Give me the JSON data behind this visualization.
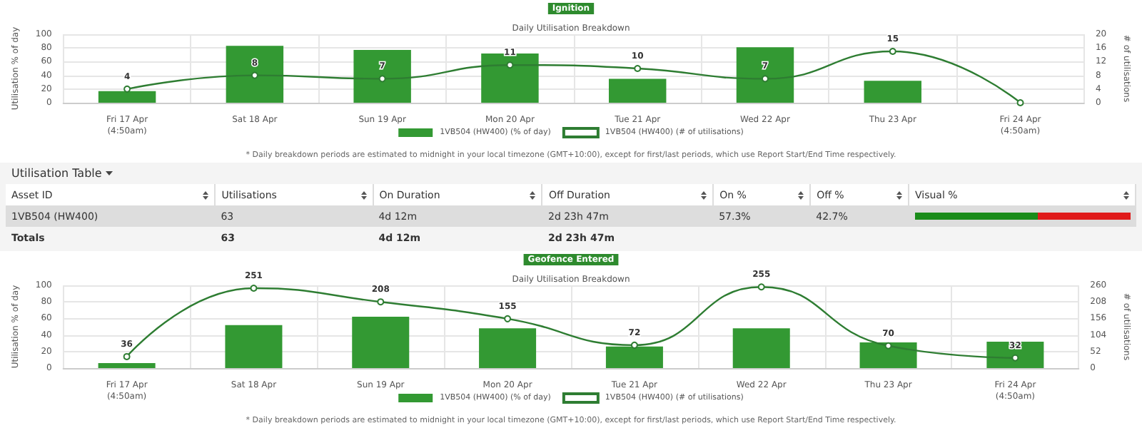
{
  "chart_data": [
    {
      "type": "bar",
      "title": "Ignition",
      "subtitle": "Daily Utilisation Breakdown",
      "categories": [
        "Fri 17 Apr\n(4:50am)",
        "Sat 18 Apr",
        "Sun 19 Apr",
        "Mon 20 Apr",
        "Tue 21 Apr",
        "Wed 22 Apr",
        "Thu 23 Apr",
        "Fri 24 Apr\n(4:50am)"
      ],
      "series": [
        {
          "name": "1VB504 (HW400) (% of day)",
          "color": "#339933",
          "values": [
            17,
            83,
            77,
            72,
            35,
            81,
            32,
            0
          ]
        },
        {
          "name": "1VB504 (HW400) (# of utilisations)",
          "type": "line",
          "axis": "y2",
          "color": "#2e7d32",
          "values": [
            4,
            8,
            7,
            11,
            10,
            7,
            15,
            0
          ],
          "value_labels": [
            "4",
            "8",
            "7",
            "11",
            "10",
            "7",
            "15",
            null
          ]
        }
      ],
      "ylabel": "Utilisation % of day",
      "y2label": "# of utilisations",
      "ylim": [
        0,
        100
      ],
      "yticks": [
        0,
        20,
        40,
        60,
        80,
        100
      ],
      "y2lim": [
        0,
        20
      ],
      "y2ticks": [
        0,
        4,
        8,
        12,
        16,
        20
      ],
      "grid": true,
      "legend": "bottom",
      "marker": "circle",
      "annotations": [
        "* Daily breakdown periods are estimated to midnight in your local timezone (GMT+10:00), except for first/last periods, which use Report Start/End Time respectively."
      ]
    },
    {
      "type": "other",
      "title": "Utilisation Table",
      "annotations": [
        "Asset ID",
        "Utilisations",
        "On Duration",
        "Off Duration",
        "On %",
        "Off %",
        "Visual %",
        "1VB504 (HW400)",
        "63",
        "4d 12m",
        "2d 23h 47m",
        "57.3%",
        "42.7%",
        "Totals",
        "63",
        "4d 12m",
        "2d 23h 47m"
      ]
    },
    {
      "type": "bar",
      "title": "Geofence Entered",
      "subtitle": "Daily Utilisation Breakdown",
      "categories": [
        "Fri 17 Apr\n(4:50am)",
        "Sat 18 Apr",
        "Sun 19 Apr",
        "Mon 20 Apr",
        "Tue 21 Apr",
        "Wed 22 Apr",
        "Thu 23 Apr",
        "Fri 24 Apr\n(4:50am)"
      ],
      "series": [
        {
          "name": "1VB504 (HW400) (% of day)",
          "color": "#339933",
          "values": [
            6,
            52,
            62,
            48,
            26,
            48,
            31,
            32
          ]
        },
        {
          "name": "1VB504 (HW400) (# of utilisations)",
          "type": "line",
          "axis": "y2",
          "color": "#2e7d32",
          "values": [
            36,
            251,
            208,
            155,
            72,
            255,
            70,
            32
          ],
          "value_labels": [
            "36",
            "251",
            "208",
            "155",
            "72",
            "255",
            "70",
            "32"
          ]
        }
      ],
      "ylabel": "Utilisation % of day",
      "y2label": "# of utilisations",
      "ylim": [
        0,
        100
      ],
      "yticks": [
        0,
        20,
        40,
        60,
        80,
        100
      ],
      "y2lim": [
        0,
        260
      ],
      "y2ticks": [
        0,
        52,
        104,
        156,
        208,
        260
      ],
      "grid": true,
      "legend": "bottom",
      "marker": "circle",
      "annotations": [
        "* Daily breakdown periods are estimated to midnight in your local timezone (GMT+10:00), except for first/last periods, which use Report Start/End Time respectively."
      ]
    }
  ]
}
